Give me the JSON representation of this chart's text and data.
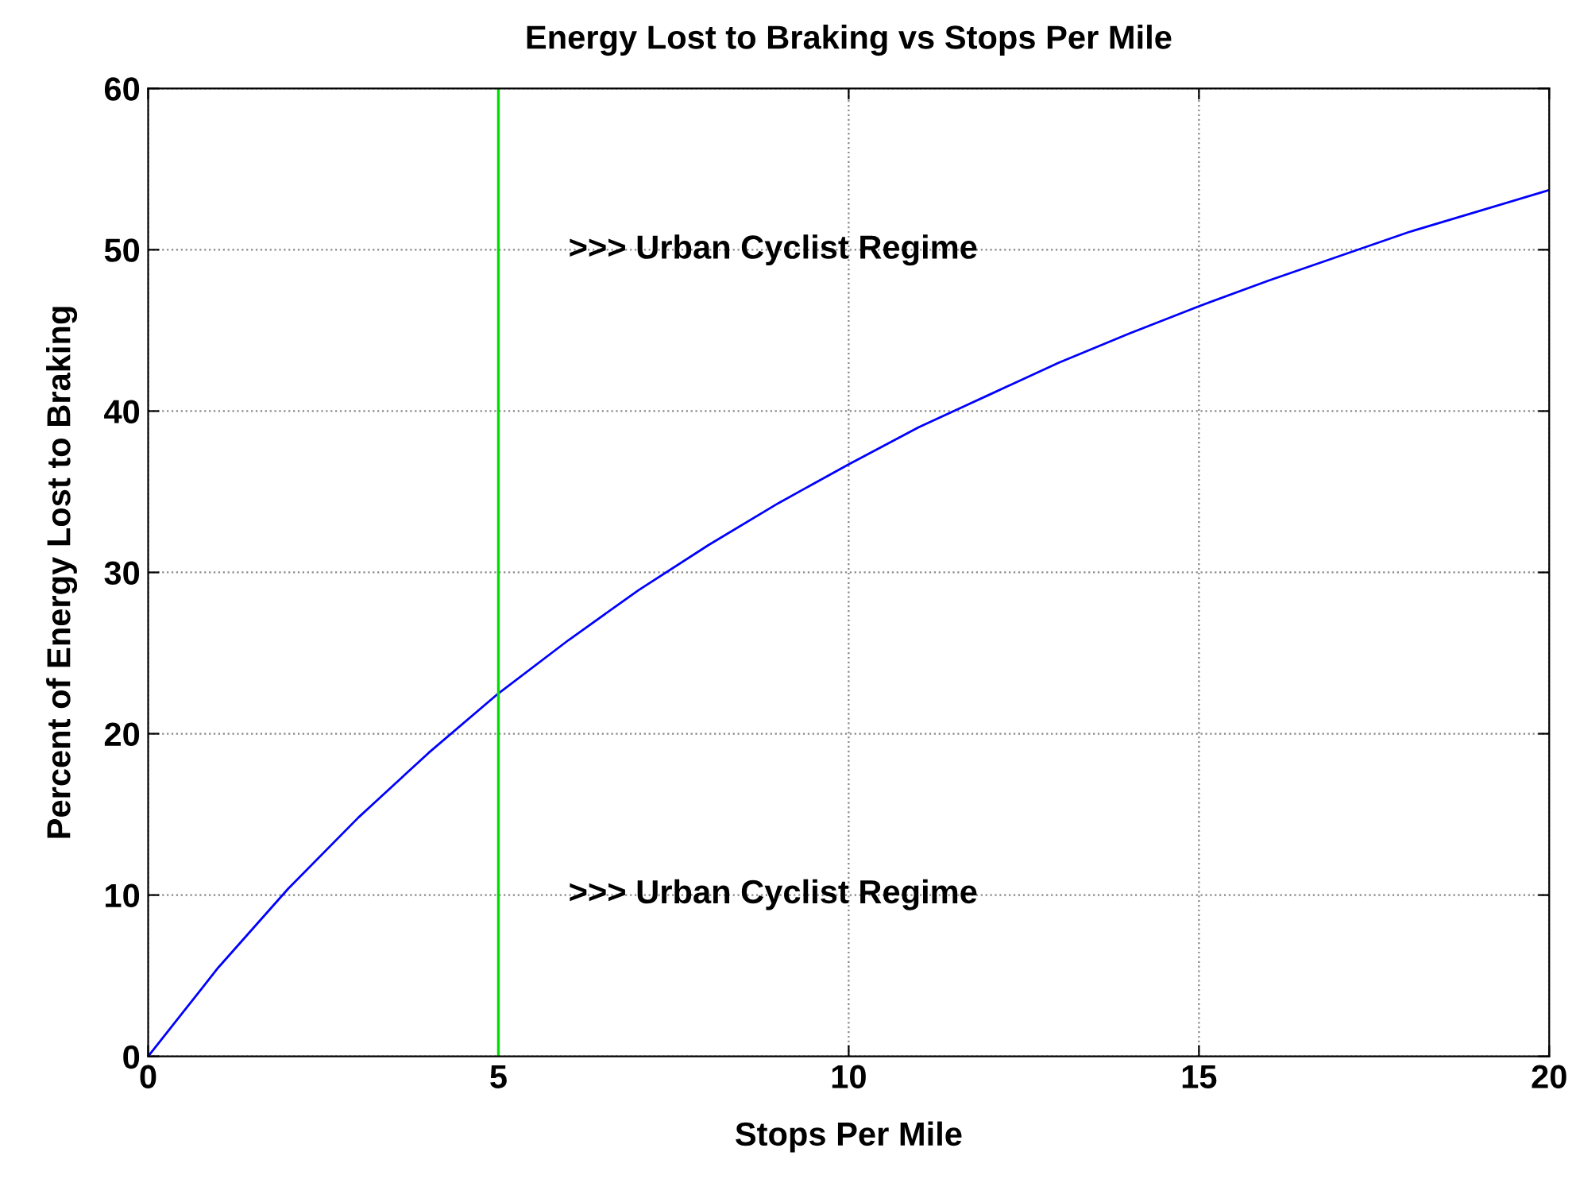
{
  "chart_data": {
    "type": "line",
    "title": "Energy Lost to Braking vs Stops Per Mile",
    "xlabel": "Stops Per Mile",
    "ylabel": "Percent of Energy Lost to Braking",
    "x": [
      0,
      1,
      2,
      3,
      4,
      5,
      6,
      7,
      8,
      9,
      10,
      11,
      12,
      13,
      14,
      15,
      16,
      17,
      18,
      19,
      20
    ],
    "series": [
      {
        "color": "#0000ff",
        "values": [
          0,
          5.5,
          10.4,
          14.8,
          18.8,
          22.5,
          25.8,
          28.9,
          31.7,
          34.3,
          36.7,
          39.0,
          41.0,
          43.0,
          44.8,
          46.5,
          48.1,
          49.6,
          51.1,
          52.4,
          53.7
        ]
      }
    ],
    "xlim": [
      0,
      20
    ],
    "ylim": [
      0,
      60
    ],
    "xticks": [
      0,
      5,
      10,
      15,
      20
    ],
    "yticks": [
      0,
      10,
      20,
      30,
      40,
      50,
      60
    ],
    "ref_lines": [
      {
        "axis": "x",
        "value": 5,
        "color": "#00dd00",
        "line_style": "solid"
      }
    ],
    "annotations": [
      ">>> Urban Cyclist Regime",
      ">>> Urban Cyclist Regime"
    ],
    "grid": true,
    "legend": false,
    "marker": "none",
    "line_style": "solid"
  }
}
